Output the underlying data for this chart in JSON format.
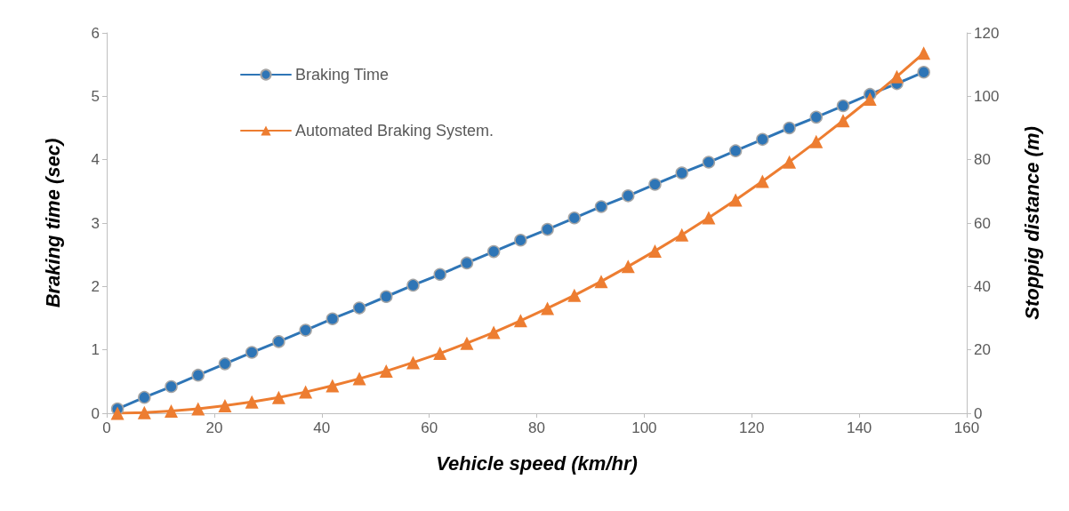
{
  "chart_data": {
    "type": "line",
    "xlabel": "Vehicle speed (km/hr)",
    "ylabel": "Braking time (sec)",
    "y2label": "Stoppig distance (m)",
    "x": [
      2,
      7,
      12,
      17,
      22,
      27,
      32,
      37,
      42,
      47,
      52,
      57,
      62,
      67,
      72,
      77,
      82,
      87,
      92,
      97,
      102,
      107,
      112,
      117,
      122,
      127,
      132,
      137,
      142,
      147,
      152
    ],
    "series": [
      {
        "name": "Braking Time",
        "color": "#2e75b6",
        "marker": "circle",
        "values": [
          0.07,
          0.25,
          0.42,
          0.6,
          0.78,
          0.96,
          1.13,
          1.31,
          1.49,
          1.66,
          1.84,
          2.02,
          2.19,
          2.37,
          2.55,
          2.73,
          2.9,
          3.08,
          3.26,
          3.43,
          3.61,
          3.79,
          3.96,
          4.14,
          4.32,
          4.5,
          4.67,
          4.85,
          5.03,
          5.2,
          5.38
        ]
      },
      {
        "name": "Automated Braking System.",
        "color": "#ed7d31",
        "marker": "triangle",
        "axis": "y2",
        "values": [
          0,
          0.2,
          0.7,
          1.4,
          2.4,
          3.6,
          5,
          6.7,
          8.7,
          10.9,
          13.3,
          16,
          18.9,
          22.1,
          25.5,
          29.2,
          33.1,
          37.2,
          41.6,
          46.3,
          51.2,
          56.3,
          61.7,
          67.3,
          73.2,
          79.3,
          85.7,
          92.3,
          99.1,
          106.2,
          113.6
        ]
      }
    ],
    "xlim": [
      0,
      160
    ],
    "xticks": [
      0,
      20,
      40,
      60,
      80,
      100,
      120,
      140,
      160
    ],
    "ylim": [
      0,
      6
    ],
    "yticks": [
      0,
      1,
      2,
      3,
      4,
      5,
      6
    ],
    "y2lim": [
      0,
      120
    ],
    "y2ticks": [
      0,
      20,
      40,
      60,
      80,
      100,
      120
    ],
    "grid": false,
    "legend": "top left",
    "line_style": "solid"
  }
}
